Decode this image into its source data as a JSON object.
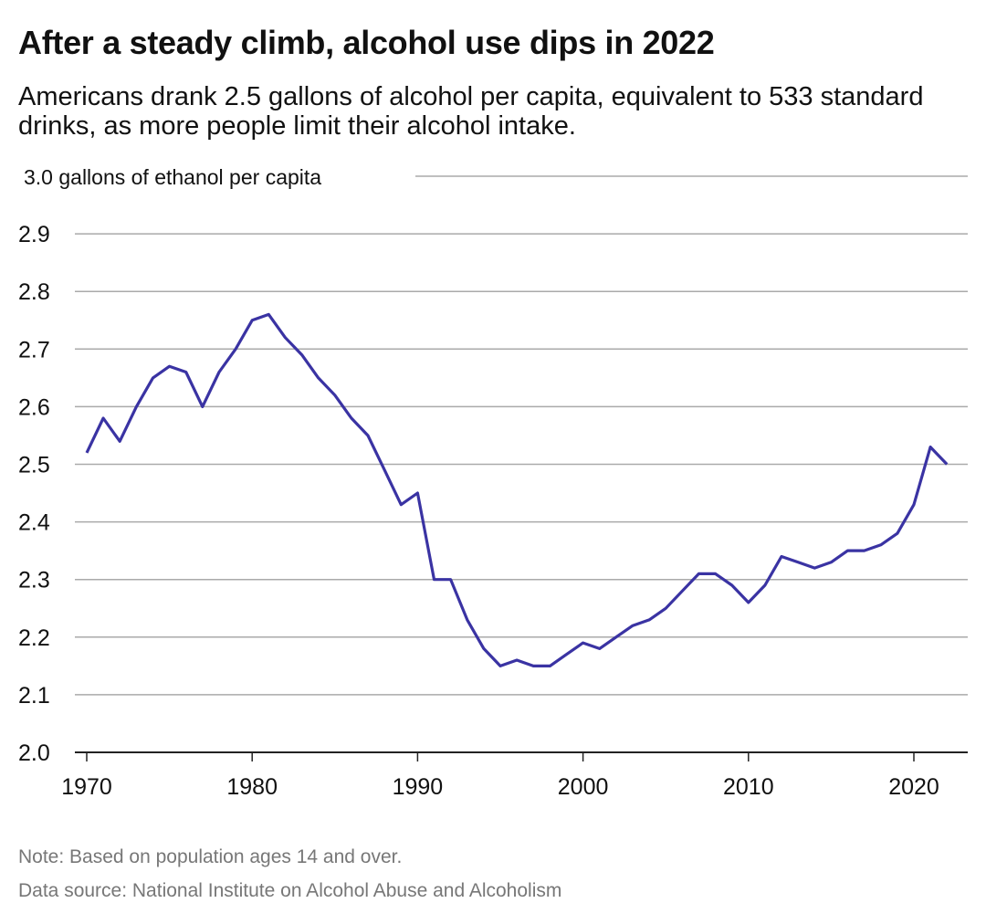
{
  "title": "After a steady climb, alcohol use dips in 2022",
  "subtitle": "Americans drank 2.5 gallons of alcohol per capita, equivalent to 533 standard drinks, as more people limit their alcohol intake.",
  "note": "Note: Based on population ages 14 and over.",
  "source": "Data source: National Institute on Alcohol Abuse and Alcoholism",
  "chart_data": {
    "type": "line",
    "title": "After a steady climb, alcohol use dips in 2022",
    "ylabel": "gallons of ethanol per capita",
    "top_tick_label": "3.0 gallons of ethanol per capita",
    "xlim": [
      1970,
      2022
    ],
    "ylim": [
      2.0,
      3.0
    ],
    "x_ticks": [
      1970,
      1980,
      1990,
      2000,
      2010,
      2020
    ],
    "y_ticks": [
      "2.0",
      "2.1",
      "2.2",
      "2.3",
      "2.4",
      "2.5",
      "2.6",
      "2.7",
      "2.8",
      "2.9",
      "3.0"
    ],
    "grid": "horizontal",
    "line_color": "#3a33a3",
    "x": [
      1970,
      1971,
      1972,
      1973,
      1974,
      1975,
      1976,
      1977,
      1978,
      1979,
      1980,
      1981,
      1982,
      1983,
      1984,
      1985,
      1986,
      1987,
      1988,
      1989,
      1990,
      1991,
      1992,
      1993,
      1994,
      1995,
      1996,
      1997,
      1998,
      1999,
      2000,
      2001,
      2002,
      2003,
      2004,
      2005,
      2006,
      2007,
      2008,
      2009,
      2010,
      2011,
      2012,
      2013,
      2014,
      2015,
      2016,
      2017,
      2018,
      2019,
      2020,
      2021,
      2022
    ],
    "values": [
      2.52,
      2.58,
      2.54,
      2.6,
      2.65,
      2.67,
      2.66,
      2.6,
      2.66,
      2.7,
      2.75,
      2.76,
      2.72,
      2.69,
      2.65,
      2.62,
      2.58,
      2.55,
      2.49,
      2.43,
      2.45,
      2.3,
      2.3,
      2.23,
      2.18,
      2.15,
      2.16,
      2.15,
      2.15,
      2.17,
      2.19,
      2.18,
      2.2,
      2.22,
      2.23,
      2.25,
      2.28,
      2.31,
      2.31,
      2.29,
      2.26,
      2.29,
      2.34,
      2.33,
      2.32,
      2.33,
      2.35,
      2.35,
      2.36,
      2.38,
      2.43,
      2.53,
      2.5
    ]
  }
}
